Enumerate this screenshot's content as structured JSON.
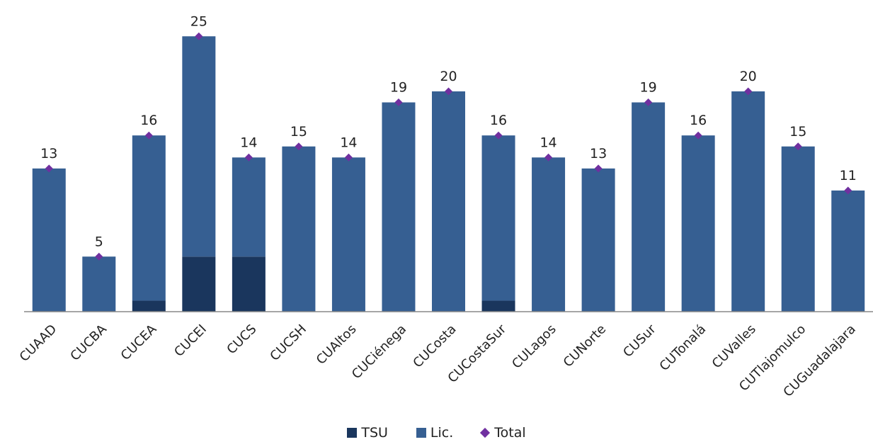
{
  "chart_data": {
    "type": "bar",
    "stacked": true,
    "categories": [
      "CUAAD",
      "CUCBA",
      "CUCEA",
      "CUCEI",
      "CUCS",
      "CUCSH",
      "CUAltos",
      "CUCiénega",
      "CUCosta",
      "CUCostaSur",
      "CULagos",
      "CUNorte",
      "CUSur",
      "CUTonalá",
      "CUValles",
      "CUTlajomulco",
      "CUGuadalajara"
    ],
    "series": [
      {
        "name": "TSU",
        "values": [
          0,
          0,
          1,
          5,
          5,
          0,
          0,
          0,
          0,
          1,
          0,
          0,
          0,
          0,
          0,
          0,
          0
        ],
        "color": "#1a365d"
      },
      {
        "name": "Lic.",
        "values": [
          13,
          5,
          15,
          20,
          9,
          15,
          14,
          19,
          20,
          15,
          14,
          13,
          19,
          16,
          20,
          15,
          11
        ],
        "color": "#365f92"
      }
    ],
    "totals": {
      "name": "Total",
      "values": [
        13,
        5,
        16,
        25,
        14,
        15,
        14,
        19,
        20,
        16,
        14,
        13,
        19,
        16,
        20,
        15,
        11
      ],
      "color": "#7030a0"
    },
    "ylim": [
      0,
      25
    ],
    "grid": false,
    "legend_position": "bottom"
  }
}
